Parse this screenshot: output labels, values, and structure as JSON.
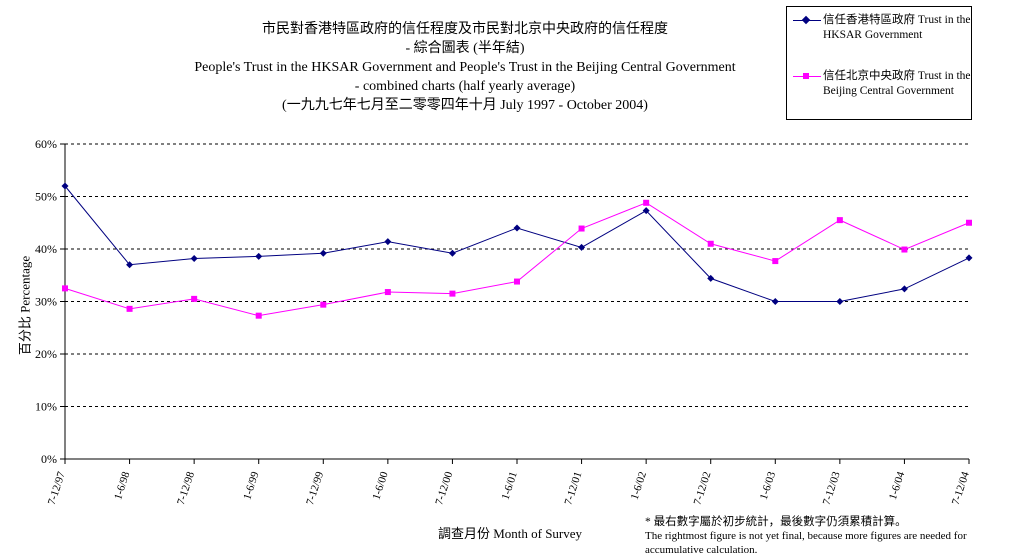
{
  "chart_data": {
    "type": "line",
    "title_lines": [
      "市民對香港特區政府的信任程度及市民對北京中央政府的信任程度",
      "- 綜合圖表 (半年結)",
      "People's Trust in the HKSAR Government and People's Trust in the Beijing Central Government",
      "- combined charts (half yearly average)",
      "(一九九七年七月至二零零四年十月 July 1997 - October 2004)"
    ],
    "xlabel": "調查月份 Month of Survey",
    "ylabel": "百分比 Percentage",
    "categories": [
      "7-12/97",
      "1-6/98",
      "7-12/98",
      "1-6/99",
      "7-12/99",
      "1-6/00",
      "7-12/00",
      "1-6/01",
      "7-12/01",
      "1-6/02",
      "7-12/02",
      "1-6/03",
      "7-12/03",
      "1-6/04",
      "7-12/04"
    ],
    "y_ticks": [
      "0%",
      "10%",
      "20%",
      "30%",
      "40%",
      "50%",
      "60%"
    ],
    "ylim": [
      0,
      60
    ],
    "grid": true,
    "legend_position": "top-right",
    "series": [
      {
        "name": "信任香港特區政府 Trust in the HKSAR Government",
        "color": "#000080",
        "marker": "diamond",
        "values": [
          52.0,
          37.0,
          38.2,
          38.6,
          39.2,
          41.4,
          39.2,
          44.0,
          40.3,
          47.3,
          34.4,
          30.0,
          30.0,
          32.4,
          38.3
        ]
      },
      {
        "name": "信任北京中央政府 Trust in the Beijing Central Government",
        "color": "#ff00ff",
        "marker": "square",
        "values": [
          32.5,
          28.6,
          30.5,
          27.3,
          29.4,
          31.8,
          31.5,
          33.8,
          43.9,
          48.8,
          41.0,
          37.7,
          45.5,
          39.9,
          45.0
        ]
      }
    ],
    "footnote": {
      "cn": "* 最右數字屬於初步統計，最後數字仍須累積計算。",
      "en": "The rightmost figure is not yet final, because more figures are needed for accumulative calculation."
    }
  }
}
